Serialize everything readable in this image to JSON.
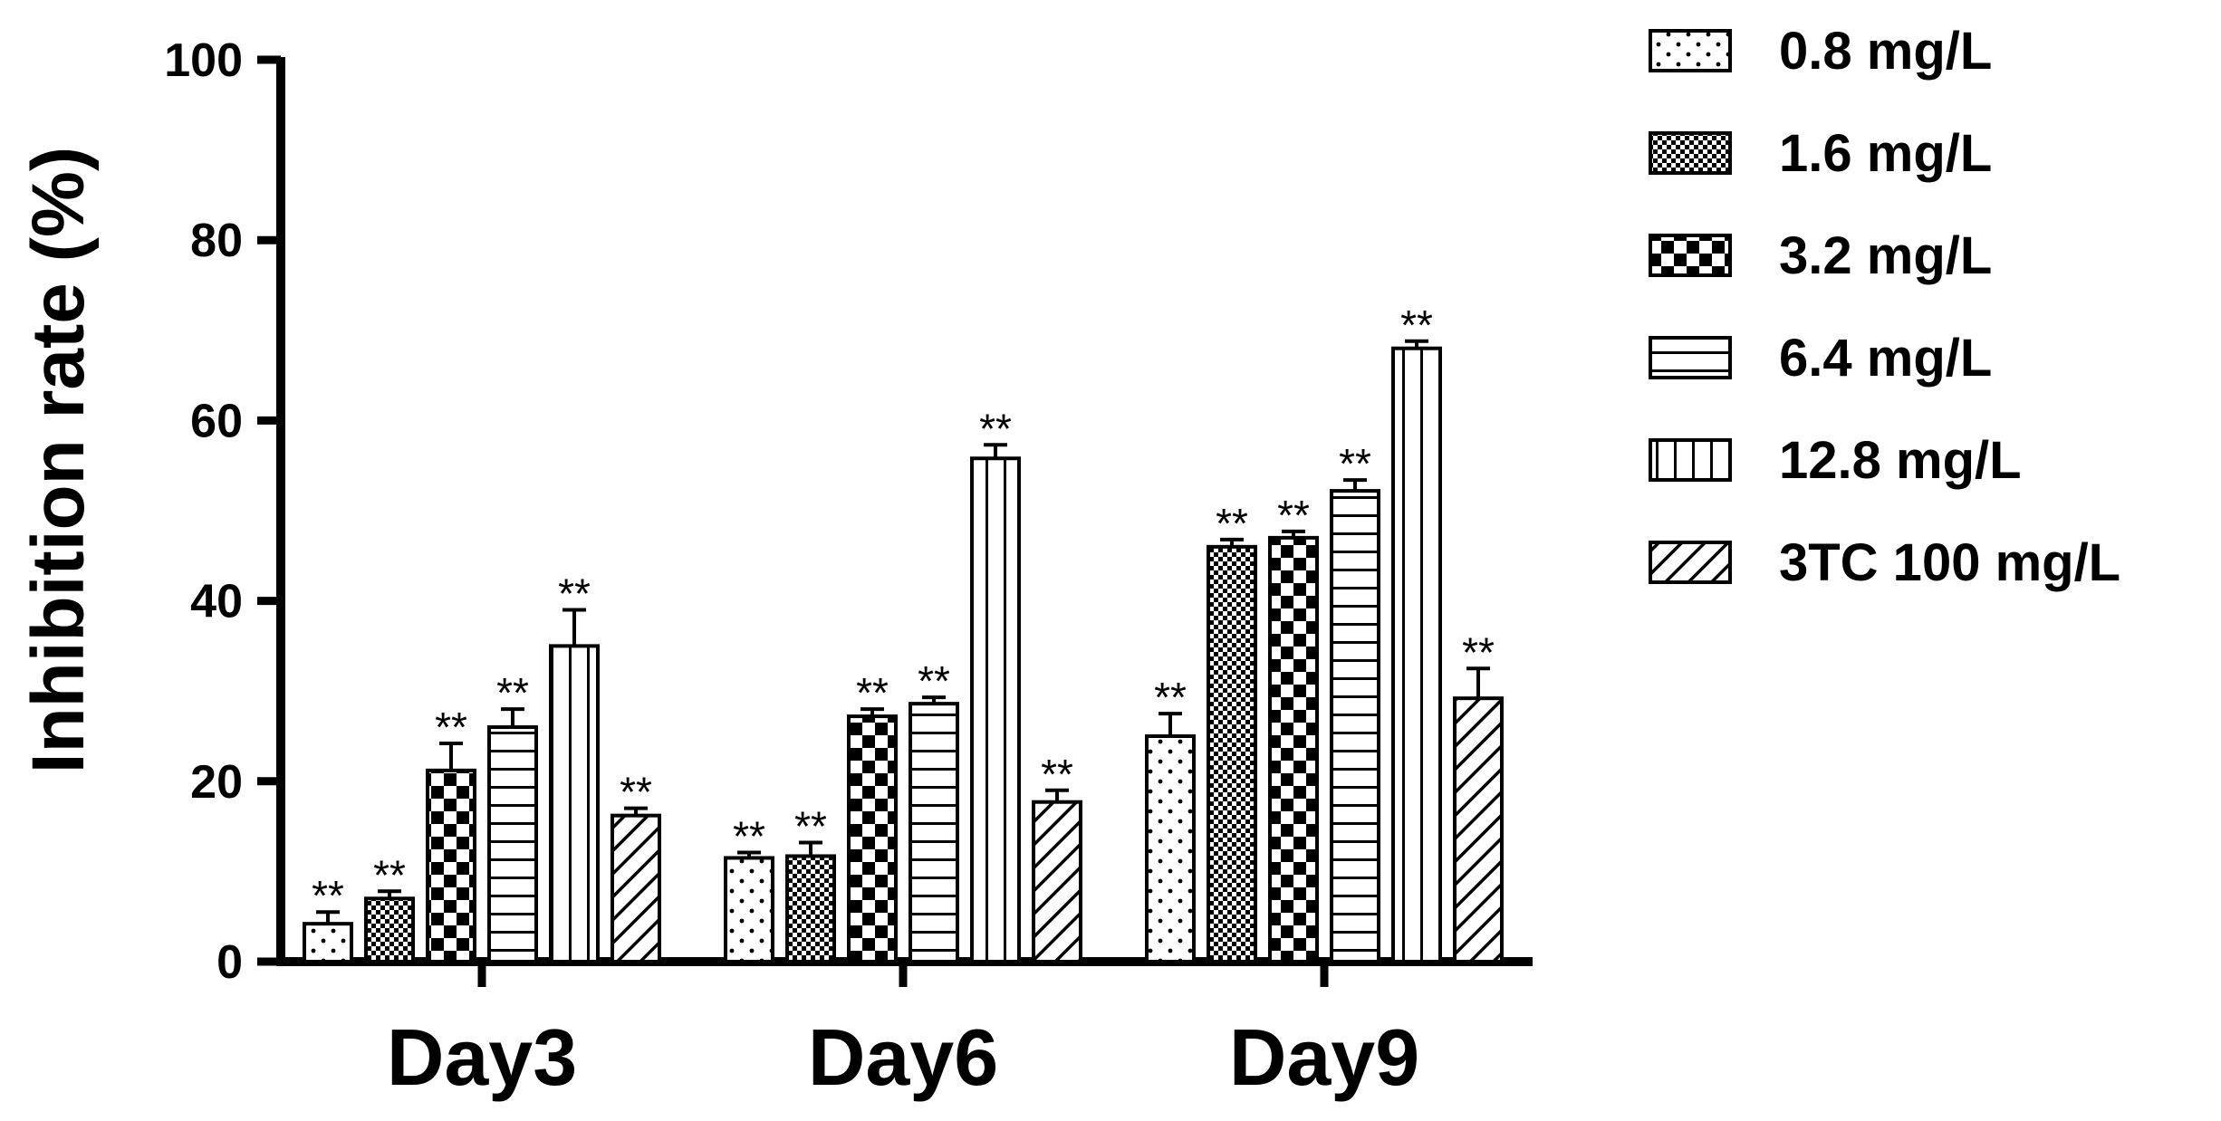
{
  "chart_data": {
    "type": "bar",
    "title": "",
    "xlabel": "",
    "ylabel": "Inhibition rate (%)",
    "ylim": [
      0,
      100
    ],
    "yticks": [
      0,
      20,
      40,
      60,
      80,
      100
    ],
    "categories": [
      "Day3",
      "Day6",
      "Day9"
    ],
    "grid": false,
    "legend_position": "right",
    "series": [
      {
        "name": "0.8 mg/L",
        "pattern": "dots-sparse",
        "values": [
          4.2,
          11.5,
          25.0
        ],
        "errors": [
          1.3,
          0.6,
          2.5
        ],
        "significance": [
          "**",
          "**",
          "**"
        ]
      },
      {
        "name": "1.6 mg/L",
        "pattern": "checker-fine",
        "values": [
          7.0,
          11.7,
          46.0
        ],
        "errors": [
          0.8,
          1.5,
          0.8
        ],
        "significance": [
          "**",
          "**",
          "**"
        ]
      },
      {
        "name": "3.2 mg/L",
        "pattern": "checker-coarse",
        "values": [
          21.2,
          27.2,
          47.0
        ],
        "errors": [
          3.0,
          0.8,
          0.7
        ],
        "significance": [
          "**",
          "**",
          "**"
        ]
      },
      {
        "name": "6.4 mg/L",
        "pattern": "horizontal-lines",
        "values": [
          26.0,
          28.6,
          52.2
        ],
        "errors": [
          2.0,
          0.7,
          1.2
        ],
        "significance": [
          "**",
          "**",
          "**"
        ]
      },
      {
        "name": "12.8 mg/L",
        "pattern": "vertical-lines",
        "values": [
          35.0,
          55.8,
          68.0
        ],
        "errors": [
          4.0,
          1.5,
          0.8
        ],
        "significance": [
          "**",
          "**",
          "**"
        ]
      },
      {
        "name": "3TC 100 mg/L",
        "pattern": "diagonal-lines",
        "values": [
          16.2,
          17.7,
          29.2
        ],
        "errors": [
          0.8,
          1.3,
          3.3
        ],
        "significance": [
          "**",
          "**",
          "**"
        ]
      }
    ]
  }
}
